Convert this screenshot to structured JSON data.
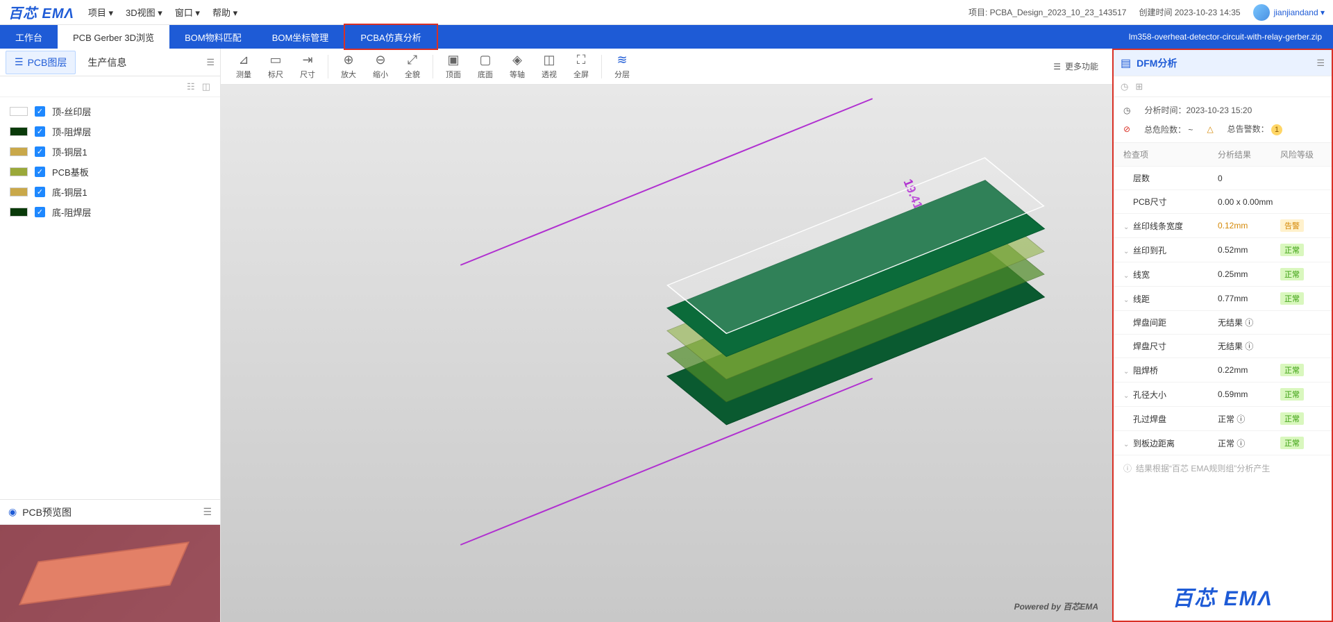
{
  "brand": "百芯 EMΛ",
  "menus": [
    "项目 ▾",
    "3D视图 ▾",
    "窗口 ▾",
    "帮助 ▾"
  ],
  "header": {
    "project_label": "项目:",
    "project_name": "PCBA_Design_2023_10_23_143517",
    "created_label": "创建时间",
    "created_value": "2023-10-23 14:35",
    "username": "jianjiandand ▾"
  },
  "tabs": [
    "工作台",
    "PCB Gerber 3D浏览",
    "BOM物料匹配",
    "BOM坐标管理",
    "PCBA仿真分析"
  ],
  "tabs_active_index": 1,
  "tabs_highlight_index": 4,
  "tabbar_filename": "lm358-overheat-detector-circuit-with-relay-gerber.zip",
  "side_tabs": [
    "PCB图层",
    "生产信息"
  ],
  "side_tabs_active_index": 0,
  "layers": [
    {
      "color": "#ffffff",
      "label": "顶-丝印层"
    },
    {
      "color": "#0a3a0a",
      "label": "顶-阻焊层"
    },
    {
      "color": "#c9a84a",
      "label": "顶-铜层1"
    },
    {
      "color": "#9aa83a",
      "label": "PCB基板"
    },
    {
      "color": "#c9a84a",
      "label": "底-铜层1"
    },
    {
      "color": "#0a3a0a",
      "label": "底-阻焊层"
    }
  ],
  "preview_title": "PCB预览图",
  "tools": [
    {
      "label": "测量",
      "icon": "⊿"
    },
    {
      "label": "标尺",
      "icon": "▭"
    },
    {
      "label": "尺寸",
      "icon": "⇥"
    },
    {
      "sep": true
    },
    {
      "label": "放大",
      "icon": "⊕"
    },
    {
      "label": "缩小",
      "icon": "⊖"
    },
    {
      "label": "全貌",
      "icon": "⤢"
    },
    {
      "sep": true
    },
    {
      "label": "顶面",
      "icon": "▣"
    },
    {
      "label": "底面",
      "icon": "▢"
    },
    {
      "label": "等轴",
      "icon": "◈"
    },
    {
      "label": "透视",
      "icon": "◫"
    },
    {
      "label": "全屏",
      "icon": "⛶"
    },
    {
      "sep": true
    },
    {
      "label": "分层",
      "icon": "≋",
      "accent": true
    }
  ],
  "more_tools": "更多功能",
  "dim_label": "19.41 (mm)",
  "powered": "Powered by 百芯EMA",
  "dfm": {
    "title": "DFM分析",
    "time_label": "分析时间：",
    "time_value": "2023-10-23 15:20",
    "risk_label": "总危险数：",
    "risk_value": "~",
    "warn_label": "总告警数：",
    "warn_value": "1",
    "thead": [
      "检查项",
      "分析结果",
      "风险等级"
    ],
    "rows": [
      {
        "expand": false,
        "name": "层数",
        "result": "0",
        "risk": ""
      },
      {
        "expand": false,
        "name": "PCB尺寸",
        "result": "0.00 x 0.00mm",
        "risk": ""
      },
      {
        "expand": true,
        "name": "丝印线条宽度",
        "result": "0.12mm",
        "risk": "告警",
        "risk_cls": "warn",
        "warn": true
      },
      {
        "expand": true,
        "name": "丝印到孔",
        "result": "0.52mm",
        "risk": "正常",
        "risk_cls": "ok"
      },
      {
        "expand": true,
        "name": "线宽",
        "result": "0.25mm",
        "risk": "正常",
        "risk_cls": "ok"
      },
      {
        "expand": true,
        "name": "线距",
        "result": "0.77mm",
        "risk": "正常",
        "risk_cls": "ok"
      },
      {
        "expand": false,
        "name": "焊盘间距",
        "result": "无结果 ⓘ",
        "risk": ""
      },
      {
        "expand": false,
        "name": "焊盘尺寸",
        "result": "无结果 ⓘ",
        "risk": ""
      },
      {
        "expand": true,
        "name": "阻焊桥",
        "result": "0.22mm",
        "risk": "正常",
        "risk_cls": "ok"
      },
      {
        "expand": true,
        "name": "孔径大小",
        "result": "0.59mm",
        "risk": "正常",
        "risk_cls": "ok"
      },
      {
        "expand": false,
        "name": "孔过焊盘",
        "result": "正常 ⓘ",
        "risk": "正常",
        "risk_cls": "ok"
      },
      {
        "expand": true,
        "name": "到板边距离",
        "result": "正常 ⓘ",
        "risk": "正常",
        "risk_cls": "ok"
      }
    ],
    "foot": "结果根据“百芯 EMA规则组”分析产生"
  },
  "brand_corner": "百芯 EMΛ"
}
